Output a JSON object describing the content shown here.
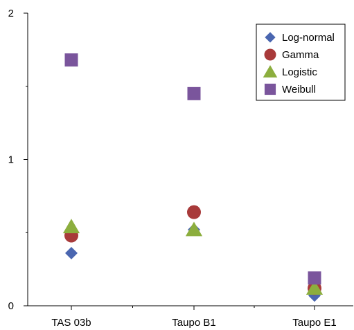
{
  "chart_data": {
    "type": "scatter",
    "categories": [
      "TAS 03b",
      "Taupo B1",
      "Taupo E1"
    ],
    "ylim": [
      0,
      2
    ],
    "yticks": [
      0,
      1,
      2
    ],
    "yticks_minor": [
      0.5,
      1.5
    ],
    "grid": false,
    "legend_position": "top-right",
    "series": [
      {
        "name": "Log-normal",
        "marker": "diamond",
        "color": "#4a66b0",
        "values": [
          0.36,
          0.52,
          0.07
        ]
      },
      {
        "name": "Gamma",
        "marker": "circle",
        "color": "#a83a3a",
        "values": [
          0.48,
          0.64,
          0.12
        ]
      },
      {
        "name": "Logistic",
        "marker": "triangle",
        "color": "#8cae3e",
        "values": [
          0.54,
          0.52,
          0.12
        ]
      },
      {
        "name": "Weibull",
        "marker": "square",
        "color": "#7a559c",
        "values": [
          1.68,
          1.45,
          0.19
        ]
      }
    ]
  }
}
